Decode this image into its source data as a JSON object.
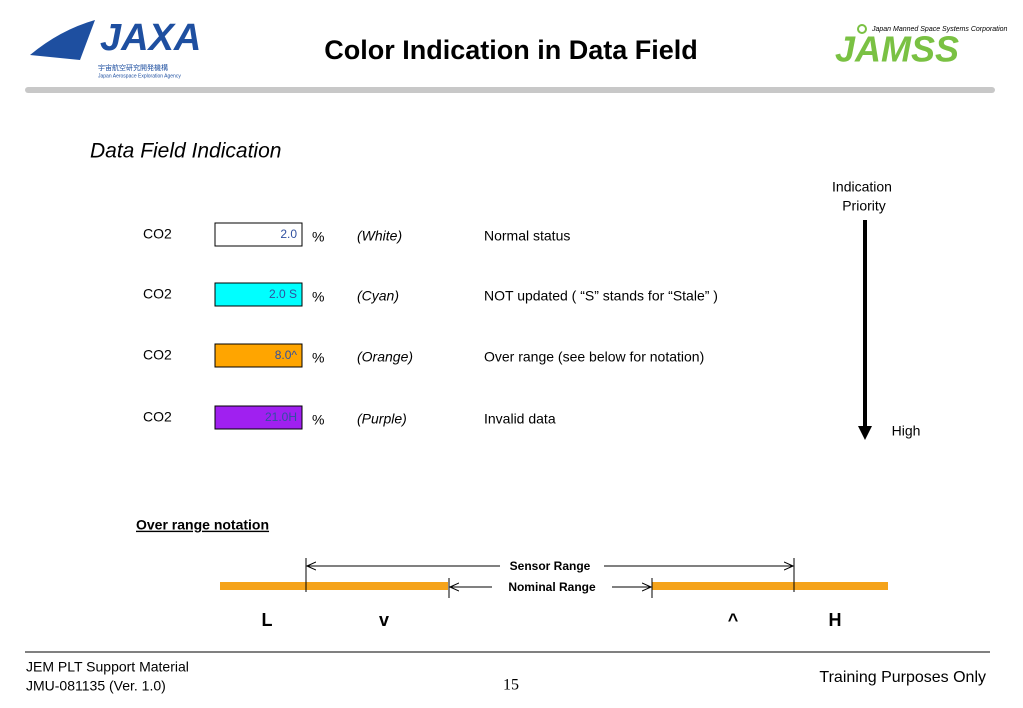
{
  "header": {
    "title": "Color Indication in Data Field",
    "left_logo": {
      "mark": "JAXA",
      "name_jp": "宇宙航空研究開発機構",
      "name_en": "Japan Aerospace Exploration Agency"
    },
    "right_logo": {
      "mark": "JAMSS",
      "name_en": "Japan Manned Space Systems Corporation"
    }
  },
  "section_title": "Data Field Indication",
  "rows": [
    {
      "label": "CO2",
      "value": "2.0",
      "unit": "%",
      "color_name": "(White)",
      "description": "Normal status",
      "fill": "#ffffff"
    },
    {
      "label": "CO2",
      "value": "2.0 S",
      "unit": "%",
      "color_name": "(Cyan)",
      "description": "NOT updated ( “S” stands for “Stale” )",
      "fill": "#00ffff"
    },
    {
      "label": "CO2",
      "value": "8.0^",
      "unit": "%",
      "color_name": "(Orange)",
      "description": "Over range (see below for notation)",
      "fill": "#ffa500"
    },
    {
      "label": "CO2",
      "value": "21.0H",
      "unit": "%",
      "color_name": "(Purple)",
      "description": "Invalid data",
      "fill": "#a020f0"
    }
  ],
  "priority": {
    "title_line1": "Indication",
    "title_line2": "Priority",
    "end_label": "High"
  },
  "over_range": {
    "title": "Over range notation",
    "sensor_range": "Sensor Range",
    "nominal_range": "Nominal Range",
    "markers": [
      "L",
      "v",
      "^",
      "H"
    ]
  },
  "footer": {
    "line1": "JEM PLT Support Material",
    "line2": "JMU-081135 (Ver. 1.0)",
    "page": "15",
    "right": "Training Purposes Only"
  }
}
